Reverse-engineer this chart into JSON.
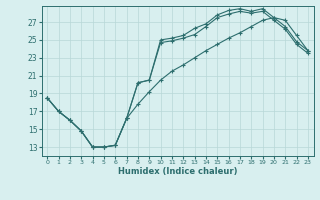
{
  "xlabel": "Humidex (Indice chaleur)",
  "bg_color": "#d8efef",
  "grid_color": "#b8d8d8",
  "line_color": "#2d6e6e",
  "xlim": [
    -0.5,
    23.5
  ],
  "ylim": [
    12.0,
    28.8
  ],
  "xticks": [
    0,
    1,
    2,
    3,
    4,
    5,
    6,
    7,
    8,
    9,
    10,
    11,
    12,
    13,
    14,
    15,
    16,
    17,
    18,
    19,
    20,
    21,
    22,
    23
  ],
  "yticks": [
    13,
    15,
    17,
    19,
    21,
    23,
    25,
    27
  ],
  "line1_x": [
    0,
    1,
    2,
    3,
    4,
    5,
    6,
    7,
    8,
    9,
    10,
    11,
    12,
    13,
    14,
    15,
    16,
    17,
    18,
    19,
    20,
    21,
    22,
    23
  ],
  "line1_y": [
    18.5,
    17.0,
    16.0,
    14.8,
    13.0,
    13.0,
    13.2,
    16.2,
    20.2,
    20.5,
    25.0,
    25.2,
    25.5,
    26.3,
    26.8,
    27.8,
    28.3,
    28.5,
    28.2,
    28.5,
    27.5,
    26.5,
    24.8,
    23.8
  ],
  "line2_x": [
    0,
    1,
    2,
    3,
    4,
    5,
    6,
    7,
    8,
    9,
    10,
    11,
    12,
    13,
    14,
    15,
    16,
    17,
    18,
    19,
    20,
    21,
    22,
    23
  ],
  "line2_y": [
    18.5,
    17.0,
    16.0,
    14.8,
    13.0,
    13.0,
    13.2,
    16.2,
    20.2,
    20.5,
    24.7,
    24.9,
    25.2,
    25.6,
    26.5,
    27.5,
    27.9,
    28.2,
    28.0,
    28.2,
    27.2,
    26.2,
    24.5,
    23.5
  ],
  "line3_x": [
    0,
    1,
    2,
    3,
    4,
    5,
    6,
    7,
    8,
    9,
    10,
    11,
    12,
    13,
    14,
    15,
    16,
    17,
    18,
    19,
    20,
    21,
    22,
    23
  ],
  "line3_y": [
    18.5,
    17.0,
    16.0,
    14.8,
    13.0,
    13.0,
    13.2,
    16.2,
    17.8,
    19.2,
    20.5,
    21.5,
    22.2,
    23.0,
    23.8,
    24.5,
    25.2,
    25.8,
    26.5,
    27.2,
    27.5,
    27.2,
    25.5,
    23.8
  ]
}
